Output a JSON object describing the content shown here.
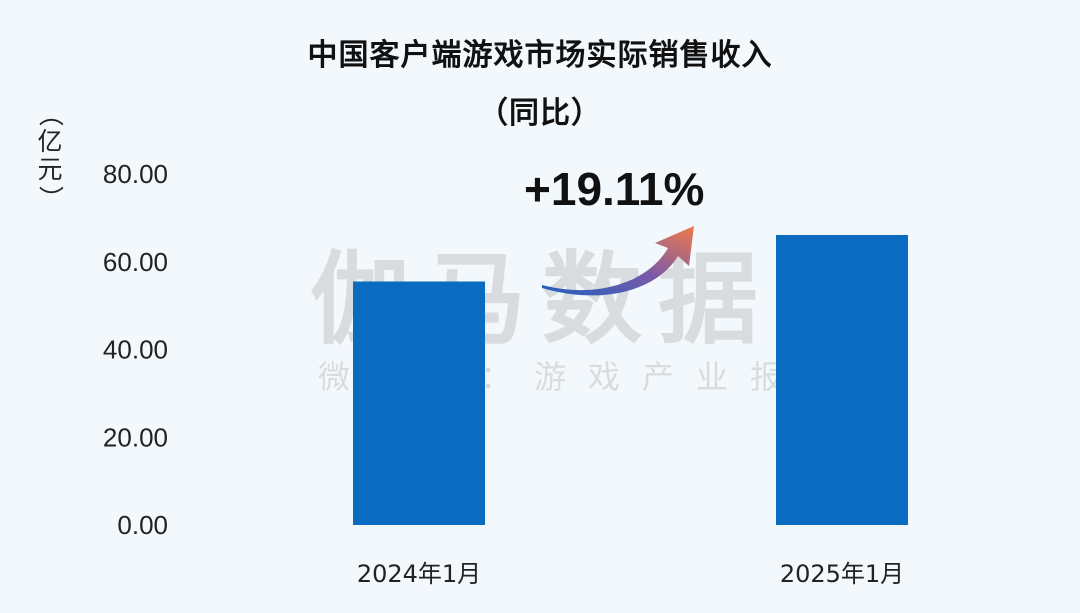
{
  "chart_data": {
    "type": "bar",
    "title": "中国客户端游戏市场实际销售收入",
    "subtitle": "（同比）",
    "ylabel": "（亿元）",
    "ylabel_chars": [
      "（",
      "亿",
      "元",
      "）"
    ],
    "categories": [
      "2024年1月",
      "2025年1月"
    ],
    "values": [
      55.5,
      66.1
    ],
    "ylim": [
      0,
      80
    ],
    "yticks": [
      "0.00",
      "20.00",
      "40.00",
      "60.00",
      "80.00"
    ],
    "annotation": "+19.11%",
    "grid": false,
    "legend": "none",
    "bar_color": "#0a6cc1"
  },
  "watermark": {
    "main": "伽马数据",
    "sub": "微信号：游戏产业报告"
  }
}
